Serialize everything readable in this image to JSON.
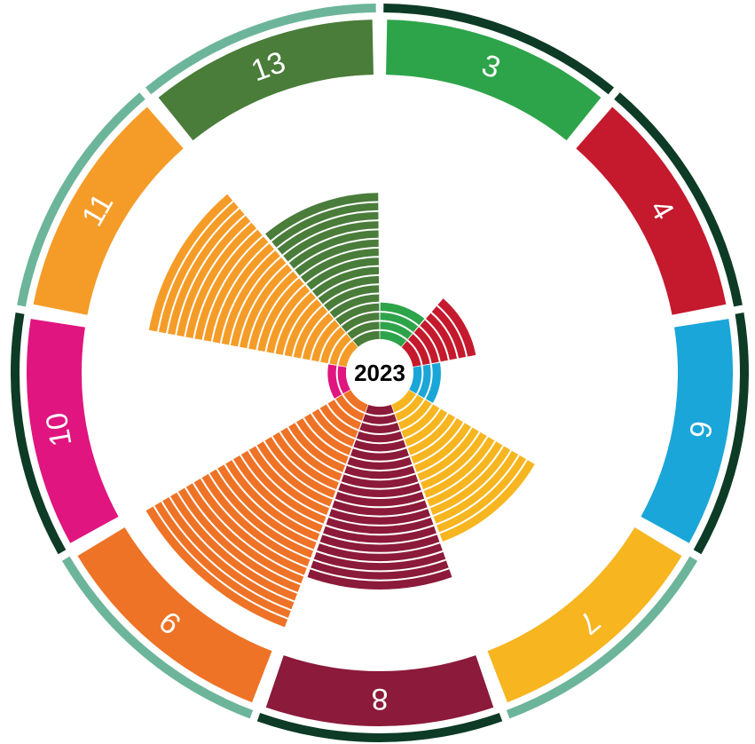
{
  "chart_data": {
    "type": "polar",
    "center_label": "2023",
    "categories": [
      "3",
      "4",
      "6",
      "7",
      "8",
      "9",
      "10",
      "11",
      "13"
    ],
    "values": [
      4,
      7,
      3,
      16,
      20,
      26,
      2,
      22,
      16
    ],
    "colors": [
      "#2ea44a",
      "#c5192d",
      "#1aa6d8",
      "#f7b520",
      "#8c1a3a",
      "#ee7326",
      "#e0157f",
      "#f59c28",
      "#4a7c3a"
    ],
    "band_colors": [
      "#0d3b26",
      "#0d3b26",
      "#0d3b26",
      "#6db59a",
      "#0d3b26",
      "#6db59a",
      "#0d3b26",
      "#6db59a",
      "#6db59a"
    ]
  }
}
